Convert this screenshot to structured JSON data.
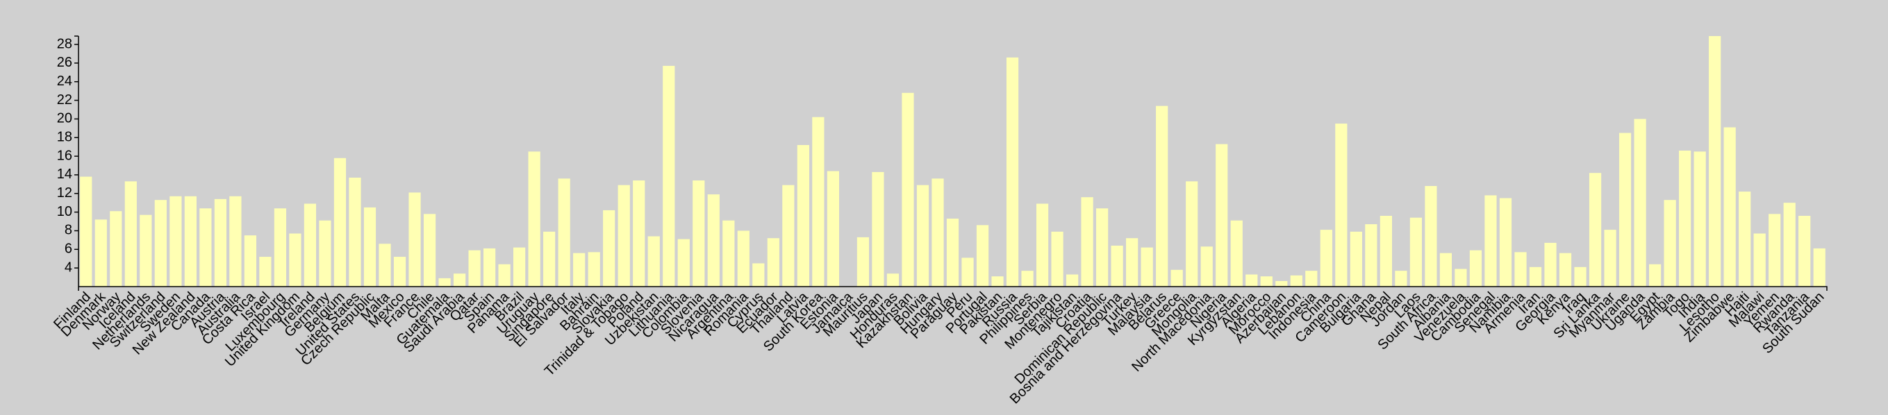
{
  "chart_data": {
    "type": "bar",
    "categories": [
      "Finland",
      "Denmark",
      "Norway",
      "Iceland",
      "Netherlands",
      "Switzerland",
      "Sweden",
      "New Zealand",
      "Canada",
      "Austria",
      "Australia",
      "Costa Rica",
      "Israel",
      "Luxembourg",
      "United Kingdom",
      "Ireland",
      "Germany",
      "Belgium",
      "United States",
      "Czech Republic",
      "Malta",
      "Mexico",
      "France",
      "Chile",
      "Guatemala",
      "Saudi Arabia",
      "Qatar",
      "Spain",
      "Panama",
      "Brazil",
      "Uruguay",
      "Singapore",
      "El Salvador",
      "Italy",
      "Bahrain",
      "Slovakia",
      "Trinidad & Tobago",
      "Poland",
      "Uzbekistan",
      "Lithuania",
      "Colombia",
      "Slovenia",
      "Nicaragua",
      "Argentina",
      "Romania",
      "Cyprus",
      "Ecuador",
      "Thailand",
      "Latvia",
      "South Korea",
      "Estonia",
      "Jamaica",
      "Mauritius",
      "Japan",
      "Honduras",
      "Kazakhstan",
      "Bolivia",
      "Hungary",
      "Paraguay",
      "Peru",
      "Portugal",
      "Pakistan",
      "Russia",
      "Philippines",
      "Serbia",
      "Montenegro",
      "Tajikistan",
      "Croatia",
      "Dominican Republic",
      "Bosnia and Herzegovina",
      "Turkey",
      "Malaysia",
      "Belarus",
      "Greece",
      "Mongolia",
      "North Macedonia",
      "Nigeria",
      "Kyrgyzstan",
      "Algeria",
      "Morocco",
      "Azerbaijan",
      "Lebanon",
      "Indonesia",
      "China",
      "Cameroon",
      "Bulgaria",
      "Ghana",
      "Nepal",
      "Jordan",
      "Laos",
      "South Africa",
      "Albania",
      "Venezuela",
      "Cambodia",
      "Senegal",
      "Namibia",
      "Armenia",
      "Iran",
      "Georgia",
      "Kenya",
      "Iraq",
      "Sri Lanka",
      "Myanmar",
      "Ukraine",
      "Uganda",
      "Egypt",
      "Zambia",
      "Togo",
      "India",
      "Lesotho",
      "Zimbabwe",
      "Haiti",
      "Malawi",
      "Yemen",
      "Rwanda",
      "Tanzania",
      "South Sudan"
    ],
    "values": [
      13.8,
      9.2,
      10.1,
      13.3,
      9.7,
      11.3,
      11.7,
      11.7,
      10.4,
      11.4,
      11.7,
      7.5,
      5.2,
      10.4,
      7.7,
      10.9,
      9.1,
      15.8,
      13.7,
      10.5,
      6.6,
      5.2,
      12.1,
      9.8,
      2.9,
      3.4,
      5.9,
      6.1,
      4.4,
      6.2,
      16.5,
      7.9,
      13.6,
      5.6,
      5.7,
      10.2,
      12.9,
      13.4,
      7.4,
      25.7,
      7.1,
      13.4,
      11.9,
      9.1,
      8.0,
      4.5,
      7.2,
      12.9,
      17.2,
      20.2,
      14.4,
      1.5,
      7.3,
      14.3,
      3.4,
      22.8,
      12.9,
      13.6,
      9.3,
      5.1,
      8.6,
      3.1,
      26.6,
      3.7,
      10.9,
      7.9,
      3.3,
      11.6,
      10.4,
      6.4,
      7.2,
      6.2,
      21.4,
      3.8,
      13.3,
      6.3,
      17.3,
      9.1,
      3.3,
      3.1,
      2.6,
      3.2,
      3.7,
      8.1,
      19.5,
      7.9,
      8.7,
      9.6,
      3.7,
      9.4,
      12.8,
      5.6,
      3.9,
      5.9,
      11.8,
      11.5,
      5.7,
      4.1,
      6.7,
      5.6,
      4.1,
      14.2,
      8.1,
      18.5,
      20.0,
      4.4,
      11.3,
      16.6,
      16.5,
      28.9,
      19.1,
      12.2,
      7.7,
      9.8,
      11.0,
      9.6,
      6.1
    ],
    "color": "#ffffb3",
    "ylim": [
      2,
      29
    ],
    "yticks": [
      4,
      6,
      8,
      10,
      12,
      14,
      16,
      18,
      20,
      22,
      24,
      26,
      28
    ],
    "grid": false
  }
}
